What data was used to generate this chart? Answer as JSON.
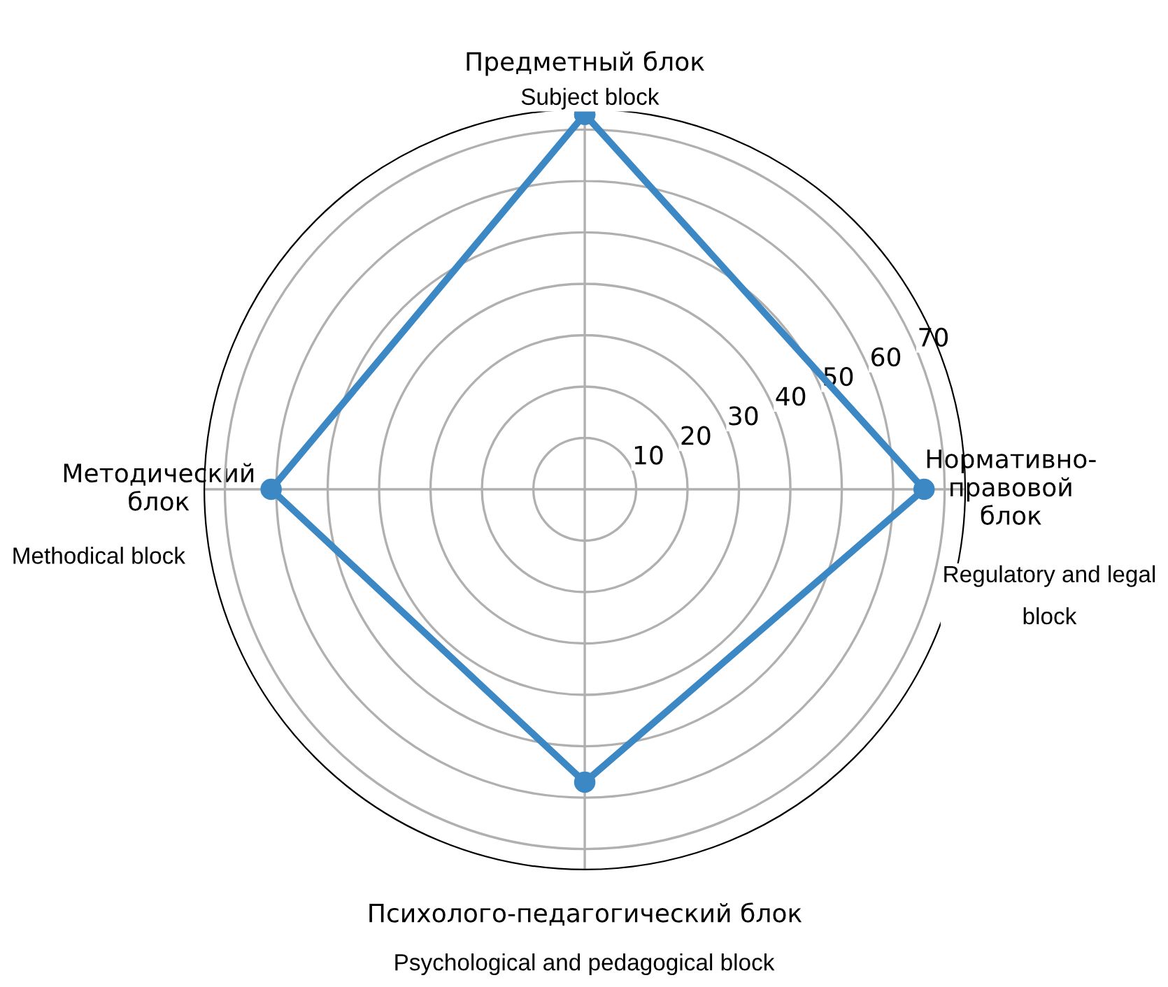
{
  "chart_data": {
    "type": "radar",
    "categories": [
      "Предметный блок",
      "Нормативно-\nправовой\nблок",
      "Психолого-педагогический блок",
      "Методический\nблок"
    ],
    "series": [
      {
        "color": "#3b88c4",
        "values": [
          73,
          66,
          57,
          61
        ]
      }
    ],
    "ylim": [
      0,
      74
    ],
    "yticks": [
      10,
      20,
      30,
      40,
      50,
      60,
      70
    ],
    "grid": true,
    "marker": "circle",
    "line_style": "solid",
    "annotations": [
      "Subject block",
      "Regulatory and legal\nblock",
      "Psychological and pedagogical block",
      "Methodical block"
    ]
  }
}
